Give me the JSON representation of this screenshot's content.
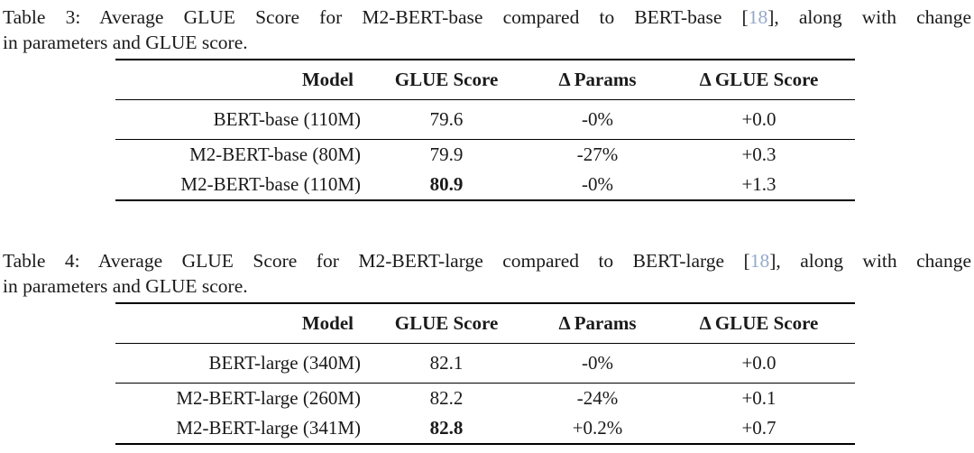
{
  "citation_color": "#94a8cc",
  "tables": [
    {
      "caption": {
        "line1_pre": "Table 3: Average GLUE Score for M2-BERT-base compared to BERT-base [",
        "cite": "18",
        "line1_post": "], along with change",
        "line2": "in parameters and GLUE score."
      },
      "headers": [
        "Model",
        "GLUE Score",
        "Δ Params",
        "Δ GLUE Score"
      ],
      "groups": [
        {
          "rows": [
            [
              "BERT-base (110M)",
              "79.6",
              "-0%",
              "+0.0"
            ]
          ]
        },
        {
          "rows": [
            [
              "M2-BERT-base (80M)",
              "79.9",
              "-27%",
              "+0.3"
            ],
            [
              "M2-BERT-base (110M)",
              "80.9",
              "-0%",
              "+1.3"
            ]
          ]
        }
      ]
    },
    {
      "caption": {
        "line1_pre": "Table 4: Average GLUE Score for M2-BERT-large compared to BERT-large [",
        "cite": "18",
        "line1_post": "], along with change",
        "line2": "in parameters and GLUE score."
      },
      "headers": [
        "Model",
        "GLUE Score",
        "Δ Params",
        "Δ GLUE Score"
      ],
      "groups": [
        {
          "rows": [
            [
              "BERT-large (340M)",
              "82.1",
              "-0%",
              "+0.0"
            ]
          ]
        },
        {
          "rows": [
            [
              "M2-BERT-large (260M)",
              "82.2",
              "-24%",
              "+0.1"
            ],
            [
              "M2-BERT-large (341M)",
              "82.8",
              "+0.2%",
              "+0.7"
            ]
          ]
        }
      ]
    }
  ]
}
